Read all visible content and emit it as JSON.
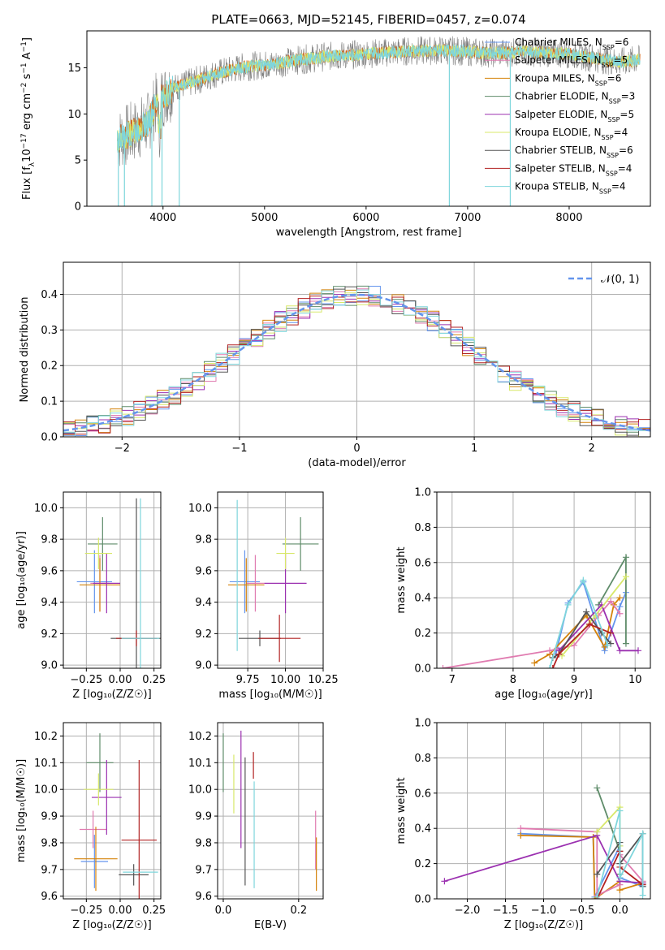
{
  "colors": {
    "blue": "#6495ed",
    "orange": "#d2691e",
    "darkorange": "#d4820a",
    "green": "#5f8c6a",
    "purple": "#9b30b0",
    "yellow": "#d8e86a",
    "dark": "#555555",
    "red": "#b22222",
    "cyan": "#7fd6dc",
    "gray": "#808080",
    "grid": "#b0b0b0",
    "pink": "#e07bb0"
  },
  "chart_data": [
    {
      "type": "line",
      "title": "PLATE=0663, MJD=52145, FIBERID=0457, z=0.074",
      "xlabel": "wavelength [Angstrom, rest frame]",
      "ylabel_parts": [
        "Flux [f",
        "λ",
        "10",
        "−17",
        " erg cm",
        "−2",
        " s",
        "−1",
        " A",
        "−1",
        "]"
      ],
      "xlim": [
        3250,
        8800
      ],
      "ylim": [
        0,
        19
      ],
      "xticks": [
        "4000",
        "5000",
        "6000",
        "7000",
        "8000"
      ],
      "yticks": [
        "0",
        "5",
        "10",
        "15"
      ],
      "spectrum_continuum": [
        [
          3550,
          7.2
        ],
        [
          3700,
          8.0
        ],
        [
          3850,
          9.0
        ],
        [
          3950,
          11.5
        ],
        [
          4100,
          12.8
        ],
        [
          4300,
          13.5
        ],
        [
          4500,
          14.3
        ],
        [
          4800,
          15.1
        ],
        [
          5100,
          15.4
        ],
        [
          5300,
          15.8
        ],
        [
          5600,
          16.2
        ],
        [
          6000,
          16.5
        ],
        [
          6400,
          16.8
        ],
        [
          6800,
          16.9
        ],
        [
          7200,
          16.6
        ],
        [
          7600,
          16.7
        ],
        [
          8000,
          16.5
        ],
        [
          8500,
          15.6
        ],
        [
          8700,
          15.9
        ]
      ],
      "legend": [
        {
          "base": "Chabrier MILES, N",
          "sub": "SSP",
          "tail": "=6",
          "color": "blue"
        },
        {
          "base": "Salpeter MILES, N",
          "sub": "SSP",
          "tail": "=5",
          "color": "pink"
        },
        {
          "base": "Kroupa MILES, N",
          "sub": "SSP",
          "tail": "=6",
          "color": "darkorange"
        },
        {
          "base": "Chabrier ELODIE, N",
          "sub": "SSP",
          "tail": "=3",
          "color": "green"
        },
        {
          "base": "Salpeter ELODIE, N",
          "sub": "SSP",
          "tail": "=5",
          "color": "purple"
        },
        {
          "base": "Kroupa ELODIE, N",
          "sub": "SSP",
          "tail": "=4",
          "color": "yellow"
        },
        {
          "base": "Chabrier STELIB, N",
          "sub": "SSP",
          "tail": "=6",
          "color": "dark"
        },
        {
          "base": "Salpeter STELIB, N",
          "sub": "SSP",
          "tail": "=4",
          "color": "red"
        },
        {
          "base": "Kroupa STELIB, N",
          "sub": "SSP",
          "tail": "=4",
          "color": "cyan"
        }
      ]
    },
    {
      "type": "histogram",
      "xlabel": "(data-model)/error",
      "ylabel": "Normed distribution",
      "xlim": [
        -2.5,
        2.5
      ],
      "ylim": [
        0,
        0.49
      ],
      "xticks": [
        "−2",
        "−1",
        "0",
        "1",
        "2"
      ],
      "yticks": [
        "0.0",
        "0.1",
        "0.2",
        "0.3",
        "0.4"
      ],
      "legend": [
        {
          "label": "𝒩(0, 1)",
          "color": "blue",
          "style": "dashed"
        }
      ]
    },
    {
      "type": "errorbar",
      "xlabel": "Z [log₁₀(Z/Z☉)]",
      "ylabel": "age  [log₁₀(age/yr)]",
      "xlim": [
        -0.42,
        0.3
      ],
      "ylim": [
        8.98,
        10.1
      ],
      "xticks": [
        "−0.25",
        "0.00",
        "0.25"
      ],
      "yticks": [
        "9.0",
        "9.2",
        "9.4",
        "9.6",
        "9.8",
        "10.0"
      ],
      "points": [
        {
          "x": -0.19,
          "xerr": 0.13,
          "y": 9.53,
          "yerr": 0.2,
          "color": "blue"
        },
        {
          "x": -0.15,
          "xerr": 0.07,
          "y": 9.52,
          "yerr": 0.18,
          "color": "pink"
        },
        {
          "x": -0.15,
          "xerr": 0.15,
          "y": 9.51,
          "yerr": 0.17,
          "color": "darkorange"
        },
        {
          "x": -0.13,
          "xerr": 0.11,
          "y": 9.77,
          "yerr": 0.17,
          "color": "green"
        },
        {
          "x": -0.1,
          "xerr": 0.1,
          "y": 9.52,
          "yerr": 0.19,
          "color": "purple"
        },
        {
          "x": -0.16,
          "xerr": 0.1,
          "y": 9.71,
          "yerr": 0.1,
          "color": "yellow"
        },
        {
          "x": 0.12,
          "xerr": 0.19,
          "y": 9.17,
          "yerr": 0.89,
          "color": "dark"
        },
        {
          "x": 0.12,
          "xerr": 0.15,
          "y": 9.17,
          "yerr": 0.05,
          "color": "red"
        },
        {
          "x": 0.15,
          "xerr": 0.14,
          "y": 9.17,
          "yerr": 0.89,
          "color": "cyan"
        }
      ]
    },
    {
      "type": "errorbar",
      "xlabel": "mass [log₁₀(M/M☉)]",
      "ylabel": "",
      "xlim": [
        9.55,
        10.25
      ],
      "ylim": [
        8.98,
        10.1
      ],
      "xticks": [
        "9.75",
        "10.00",
        "10.25"
      ],
      "yticks": [
        "9.0",
        "9.2",
        "9.4",
        "9.6",
        "9.8",
        "10.0"
      ],
      "points": [
        {
          "x": 9.73,
          "xerr": 0.1,
          "y": 9.53,
          "yerr": 0.2,
          "color": "blue"
        },
        {
          "x": 9.8,
          "xerr": 0.06,
          "y": 9.52,
          "yerr": 0.18,
          "color": "pink"
        },
        {
          "x": 9.74,
          "xerr": 0.12,
          "y": 9.51,
          "yerr": 0.17,
          "color": "darkorange"
        },
        {
          "x": 10.1,
          "xerr": 0.12,
          "y": 9.77,
          "yerr": 0.17,
          "color": "green"
        },
        {
          "x": 10.0,
          "xerr": 0.14,
          "y": 9.52,
          "yerr": 0.19,
          "color": "purple"
        },
        {
          "x": 10.0,
          "xerr": 0.06,
          "y": 9.71,
          "yerr": 0.1,
          "color": "yellow"
        },
        {
          "x": 9.83,
          "xerr": 0.14,
          "y": 9.17,
          "yerr": 0.05,
          "color": "dark"
        },
        {
          "x": 9.96,
          "xerr": 0.14,
          "y": 9.17,
          "yerr": 0.15,
          "color": "red"
        },
        {
          "x": 9.68,
          "xerr": 0.0,
          "y": 9.57,
          "yerr": 0.48,
          "color": "cyan"
        }
      ]
    },
    {
      "type": "line",
      "xlabel": "age  [log₁₀(age/yr)]",
      "ylabel": "mass weight",
      "xlim": [
        6.75,
        10.25
      ],
      "ylim": [
        0,
        1.0
      ],
      "xticks": [
        "7",
        "8",
        "9",
        "10"
      ],
      "yticks": [
        "0.0",
        "0.2",
        "0.4",
        "0.6",
        "0.8",
        "1.0"
      ],
      "series": [
        {
          "color": "blue",
          "points": [
            [
              8.7,
              0.08
            ],
            [
              8.9,
              0.37
            ],
            [
              9.15,
              0.49
            ],
            [
              9.5,
              0.1
            ],
            [
              9.75,
              0.35
            ],
            [
              9.85,
              0.43
            ]
          ]
        },
        {
          "color": "darkorange",
          "points": [
            [
              8.35,
              0.03
            ],
            [
              8.6,
              0.08
            ],
            [
              9.2,
              0.3
            ],
            [
              9.5,
              0.12
            ],
            [
              9.65,
              0.36
            ],
            [
              9.75,
              0.4
            ]
          ]
        },
        {
          "color": "pink",
          "points": [
            [
              6.85,
              0.0
            ],
            [
              8.6,
              0.1
            ],
            [
              9.0,
              0.13
            ],
            [
              9.4,
              0.3
            ],
            [
              9.6,
              0.38
            ],
            [
              9.75,
              0.31
            ]
          ]
        },
        {
          "color": "green",
          "points": [
            [
              9.4,
              0.36
            ],
            [
              9.85,
              0.63
            ],
            [
              9.85,
              0.14
            ]
          ]
        },
        {
          "color": "purple",
          "points": [
            [
              8.75,
              0.1
            ],
            [
              9.45,
              0.36
            ],
            [
              9.75,
              0.1
            ],
            [
              10.05,
              0.1
            ]
          ]
        },
        {
          "color": "yellow",
          "points": [
            [
              8.8,
              0.07
            ],
            [
              9.35,
              0.3
            ],
            [
              9.85,
              0.52
            ]
          ]
        },
        {
          "color": "dark",
          "points": [
            [
              8.65,
              0.06
            ],
            [
              8.75,
              0.08
            ],
            [
              9.2,
              0.32
            ],
            [
              9.45,
              0.2
            ],
            [
              9.6,
              0.14
            ]
          ]
        },
        {
          "color": "red",
          "points": [
            [
              8.65,
              0.0
            ],
            [
              8.75,
              0.08
            ],
            [
              9.25,
              0.25
            ],
            [
              9.6,
              0.2
            ]
          ]
        },
        {
          "color": "cyan",
          "points": [
            [
              8.6,
              0.0
            ],
            [
              8.9,
              0.36
            ],
            [
              9.15,
              0.5
            ],
            [
              9.55,
              0.13
            ]
          ]
        }
      ]
    },
    {
      "type": "errorbar",
      "xlabel": "Z [log₁₀(Z/Z☉)]",
      "ylabel": "mass [log₁₀(M/M☉)]",
      "xlim": [
        -0.42,
        0.3
      ],
      "ylim": [
        9.59,
        10.25
      ],
      "xticks": [
        "−0.25",
        "0.00",
        "0.25"
      ],
      "yticks": [
        "9.6",
        "9.7",
        "9.8",
        "9.9",
        "10.0",
        "10.1",
        "10.2"
      ],
      "points": [
        {
          "x": -0.19,
          "xerr": 0.1,
          "y": 9.73,
          "yerr": 0.1,
          "color": "blue"
        },
        {
          "x": -0.2,
          "xerr": 0.1,
          "y": 9.85,
          "yerr": 0.07,
          "color": "pink"
        },
        {
          "x": -0.18,
          "xerr": 0.16,
          "y": 9.74,
          "yerr": 0.12,
          "color": "darkorange"
        },
        {
          "x": -0.15,
          "xerr": 0.1,
          "y": 10.1,
          "yerr": 0.11,
          "color": "green"
        },
        {
          "x": -0.1,
          "xerr": 0.11,
          "y": 9.97,
          "yerr": 0.14,
          "color": "purple"
        },
        {
          "x": -0.16,
          "xerr": 0.11,
          "y": 10.0,
          "yerr": 0.06,
          "color": "yellow"
        },
        {
          "x": 0.1,
          "xerr": 0.11,
          "y": 9.68,
          "yerr": 0.04,
          "color": "dark"
        },
        {
          "x": 0.14,
          "xerr": 0.13,
          "y": 9.81,
          "yerr": 0.3,
          "color": "red"
        },
        {
          "x": 0.15,
          "xerr": 0.13,
          "y": 9.69,
          "yerr": 0.0,
          "color": "cyan"
        }
      ]
    },
    {
      "type": "errorbar",
      "xlabel": "E(B-V)",
      "ylabel": "",
      "xlim": [
        -0.015,
        0.265
      ],
      "ylim": [
        9.59,
        10.25
      ],
      "xticks": [
        "0.0",
        "0.2"
      ],
      "yticks": [
        "9.6",
        "9.7",
        "9.8",
        "9.9",
        "10.0",
        "10.1",
        "10.2"
      ],
      "points": [
        {
          "x": 0.0,
          "xerr": 0,
          "y": 10.1,
          "yerr": 0.11,
          "color": "green"
        },
        {
          "x": 0.028,
          "xerr": 0,
          "y": 10.02,
          "yerr": 0.11,
          "color": "yellow"
        },
        {
          "x": 0.047,
          "xerr": 0,
          "y": 10.0,
          "yerr": 0.22,
          "color": "purple"
        },
        {
          "x": 0.058,
          "xerr": 0,
          "y": 9.88,
          "yerr": 0.24,
          "color": "dark"
        },
        {
          "x": 0.08,
          "xerr": 0,
          "y": 10.09,
          "yerr": 0.05,
          "color": "red"
        },
        {
          "x": 0.082,
          "xerr": 0,
          "y": 9.83,
          "yerr": 0.2,
          "color": "cyan"
        },
        {
          "x": 0.245,
          "xerr": 0,
          "y": 9.81,
          "yerr": 0.11,
          "color": "pink"
        },
        {
          "x": 0.247,
          "xerr": 0,
          "y": 9.72,
          "yerr": 0.1,
          "color": "darkorange"
        }
      ]
    },
    {
      "type": "line",
      "xlabel": "Z [log₁₀(Z/Z☉)]",
      "ylabel": "mass weight",
      "xlim": [
        -2.4,
        0.4
      ],
      "ylim": [
        0,
        1.0
      ],
      "xticks": [
        "−2.0",
        "−1.5",
        "−1.0",
        "−0.5",
        "0.0"
      ],
      "yticks": [
        "0.0",
        "0.2",
        "0.4",
        "0.6",
        "0.8",
        "1.0"
      ],
      "series": [
        {
          "color": "blue",
          "points": [
            [
              -1.3,
              0.37
            ],
            [
              -0.35,
              0.35
            ],
            [
              -0.33,
              0.01
            ],
            [
              0,
              0.3
            ],
            [
              0,
              0.12
            ],
            [
              0.3,
              0.07
            ]
          ]
        },
        {
          "color": "darkorange",
          "points": [
            [
              -1.3,
              0.36
            ],
            [
              -0.35,
              0.35
            ],
            [
              -0.33,
              0.0
            ],
            [
              0,
              0.1
            ],
            [
              0,
              0.05
            ],
            [
              0.3,
              0.09
            ]
          ]
        },
        {
          "color": "pink",
          "points": [
            [
              -1.3,
              0.4
            ],
            [
              -0.3,
              0.38
            ],
            [
              -0.3,
              0.02
            ],
            [
              0,
              0.08
            ],
            [
              0,
              0.25
            ],
            [
              0.3,
              0.1
            ]
          ]
        },
        {
          "color": "green",
          "points": [
            [
              -0.3,
              0.63
            ],
            [
              0,
              0.27
            ],
            [
              0,
              0.14
            ]
          ]
        },
        {
          "color": "purple",
          "points": [
            [
              -2.3,
              0.1
            ],
            [
              -0.3,
              0.36
            ],
            [
              0,
              0.1
            ],
            [
              0.3,
              0.09
            ]
          ]
        },
        {
          "color": "yellow",
          "points": [
            [
              -0.3,
              0.38
            ],
            [
              0,
              0.52
            ],
            [
              0,
              0.3
            ]
          ]
        },
        {
          "color": "dark",
          "points": [
            [
              -0.3,
              0.14
            ],
            [
              0,
              0.32
            ],
            [
              0,
              0.2
            ],
            [
              0.3,
              0.37
            ],
            [
              0.3,
              0.07
            ]
          ]
        },
        {
          "color": "red",
          "points": [
            [
              -0.3,
              0.0
            ],
            [
              0,
              0.27
            ],
            [
              0,
              0.18
            ],
            [
              0.3,
              0.08
            ]
          ]
        },
        {
          "color": "cyan",
          "points": [
            [
              -0.3,
              0.01
            ],
            [
              0,
              0.5
            ],
            [
              0,
              0.12
            ],
            [
              0.3,
              0.37
            ],
            [
              0.3,
              0.02
            ]
          ]
        }
      ]
    }
  ]
}
